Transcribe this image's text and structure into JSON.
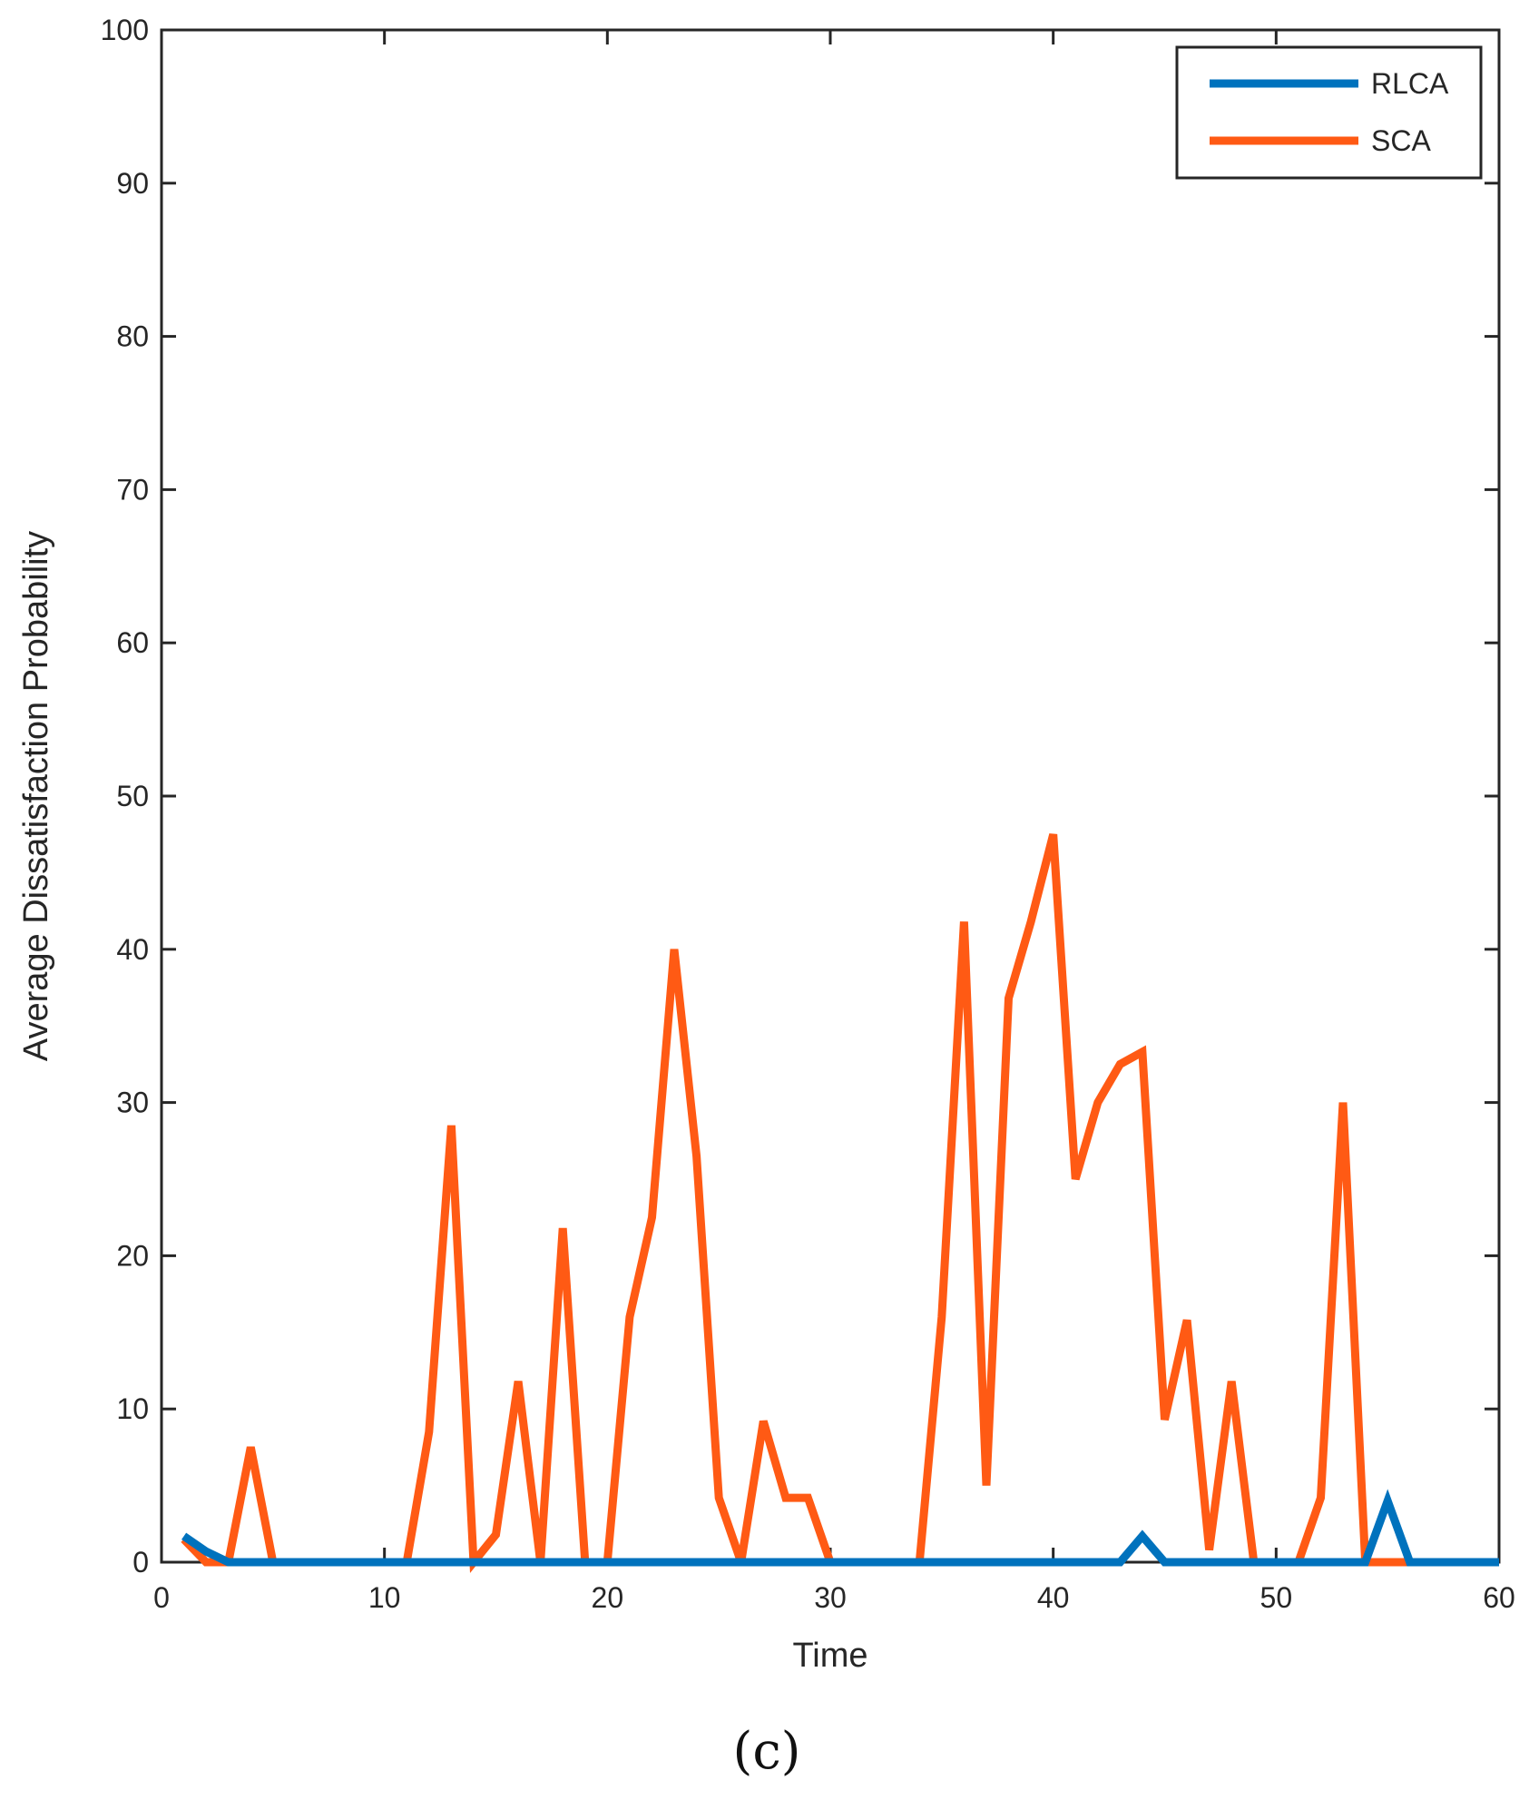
{
  "chart_data": {
    "type": "line",
    "title": "",
    "xlabel": "Time",
    "ylabel": "Average Dissatisfaction Probability",
    "xlim": [
      0,
      60
    ],
    "ylim": [
      0,
      100
    ],
    "xticks": [
      0,
      10,
      20,
      30,
      40,
      50,
      60
    ],
    "yticks": [
      0,
      10,
      20,
      30,
      40,
      50,
      60,
      70,
      80,
      90,
      100
    ],
    "grid": false,
    "legend_position": "top-right",
    "series": [
      {
        "name": "RLCA",
        "color": "#0072BD",
        "x": [
          1,
          2,
          3,
          4,
          5,
          6,
          7,
          8,
          9,
          10,
          11,
          12,
          13,
          14,
          15,
          16,
          17,
          18,
          19,
          20,
          21,
          22,
          23,
          24,
          25,
          26,
          27,
          28,
          29,
          30,
          31,
          32,
          33,
          34,
          35,
          36,
          37,
          38,
          39,
          40,
          41,
          42,
          43,
          44,
          45,
          46,
          47,
          48,
          49,
          50,
          51,
          52,
          53,
          54,
          55,
          56,
          57,
          58,
          59,
          60
        ],
        "y": [
          1.7,
          0.7,
          0,
          0,
          0,
          0,
          0,
          0,
          0,
          0,
          0,
          0,
          0,
          0,
          0,
          0,
          0,
          0,
          0,
          0,
          0,
          0,
          0,
          0,
          0,
          0,
          0,
          0,
          0,
          0,
          0,
          0,
          0,
          0,
          0,
          0,
          0,
          0,
          0,
          0,
          0,
          0,
          0,
          1.7,
          0,
          0,
          0,
          0,
          0,
          0,
          0,
          0,
          0,
          0,
          4,
          0,
          0,
          0,
          0,
          0
        ]
      },
      {
        "name": "SCA",
        "color": "#FF5A14",
        "x": [
          1,
          2,
          3,
          4,
          5,
          6,
          7,
          8,
          9,
          10,
          11,
          12,
          13,
          14,
          15,
          16,
          17,
          18,
          19,
          20,
          21,
          22,
          23,
          24,
          25,
          26,
          27,
          28,
          29,
          30,
          31,
          32,
          33,
          34,
          35,
          36,
          37,
          38,
          39,
          40,
          41,
          42,
          43,
          44,
          45,
          46,
          47,
          48,
          49,
          50,
          51,
          52,
          53,
          54,
          55,
          56,
          57,
          58,
          59,
          60
        ],
        "y": [
          1.5,
          0,
          0,
          7.5,
          0,
          0,
          0,
          0,
          0,
          0,
          0,
          8.5,
          28.5,
          0,
          1.8,
          11.8,
          0,
          21.8,
          0,
          0,
          16,
          22.5,
          40,
          26.5,
          4.2,
          0,
          9.2,
          4.2,
          4.2,
          0,
          0,
          0,
          0,
          0,
          16,
          41.8,
          5,
          36.8,
          41.8,
          47.5,
          25,
          30,
          32.5,
          33.3,
          9.3,
          15.8,
          0.8,
          11.8,
          0,
          0,
          0,
          4.2,
          30,
          0,
          0,
          0,
          0,
          0,
          0,
          0
        ]
      }
    ]
  },
  "caption": "(c)"
}
